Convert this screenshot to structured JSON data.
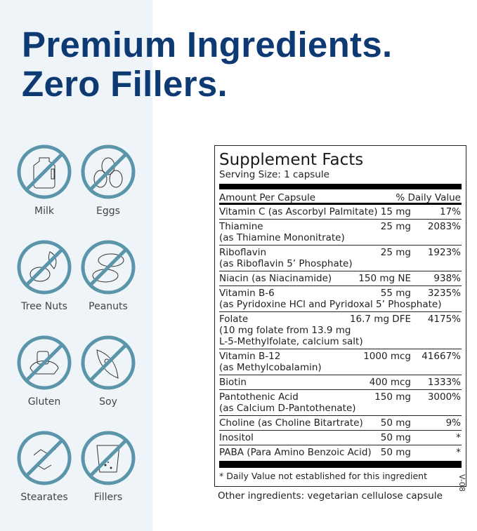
{
  "headline": {
    "line1": "Premium Ingredients.",
    "line2": "Zero Fillers."
  },
  "colors": {
    "headline": "#0e3a74",
    "icon": "#5b95aa",
    "panel": "#eef4f8"
  },
  "free_from": [
    {
      "label": "Milk",
      "icon": "milk-jug-icon"
    },
    {
      "label": "Eggs",
      "icon": "eggs-icon"
    },
    {
      "label": "Tree Nuts",
      "icon": "tree-nuts-icon"
    },
    {
      "label": "Peanuts",
      "icon": "peanuts-icon"
    },
    {
      "label": "Gluten",
      "icon": "gluten-bread-icon"
    },
    {
      "label": "Soy",
      "icon": "soybean-icon"
    },
    {
      "label": "Stearates",
      "icon": "stearates-molecule-icon"
    },
    {
      "label": "Fillers",
      "icon": "fillers-cup-icon"
    }
  ],
  "facts": {
    "title": "Supplement Facts",
    "serving": "Serving Size: 1 capsule",
    "header_left": "Amount Per Capsule",
    "header_right": "% Daily Value",
    "rows": [
      {
        "name": [
          "Vitamin C (as Ascorbyl Palmitate)"
        ],
        "amount": "15 mg",
        "dv": "17%"
      },
      {
        "name": [
          "Thiamine",
          "(as Thiamine Mononitrate)"
        ],
        "amount": "25 mg",
        "dv": "2083%"
      },
      {
        "name": [
          "Riboflavin",
          "(as Riboflavin 5’ Phosphate)"
        ],
        "amount": "25 mg",
        "dv": "1923%"
      },
      {
        "name": [
          "Niacin (as Niacinamide)"
        ],
        "amount": "150 mg NE",
        "dv": "938%"
      },
      {
        "name": [
          "Vitamin B-6",
          "(as Pyridoxine HCl and Pyridoxal 5’ Phosphate)"
        ],
        "amount": "55 mg",
        "dv": "3235%"
      },
      {
        "name": [
          "Folate",
          "(10 mg folate from 13.9 mg",
          "L-5-Methylfolate, calcium salt)"
        ],
        "amount": "16.7 mg DFE",
        "dv": "4175%"
      },
      {
        "name": [
          "Vitamin B-12",
          "(as Methylcobalamin)"
        ],
        "amount": "1000 mcg",
        "dv": "41667%"
      },
      {
        "name": [
          "Biotin"
        ],
        "amount": "400 mcg",
        "dv": "1333%"
      },
      {
        "name": [
          "Pantothenic Acid",
          "(as Calcium D-Pantothenate)"
        ],
        "amount": "150 mg",
        "dv": "3000%"
      },
      {
        "name": [
          "Choline (as Choline Bitartrate)"
        ],
        "amount": "50 mg",
        "dv": "9%"
      },
      {
        "name": [
          "Inositol"
        ],
        "amount": "50 mg",
        "dv": "*"
      },
      {
        "name": [
          "PABA (Para Amino Benzoic Acid)"
        ],
        "amount": "50 mg",
        "dv": "*"
      }
    ],
    "footnote": "* Daily Value not established for this ingredient"
  },
  "other_ingredients": "Other ingredients: vegetarian cellulose capsule",
  "version_code": "V-08"
}
